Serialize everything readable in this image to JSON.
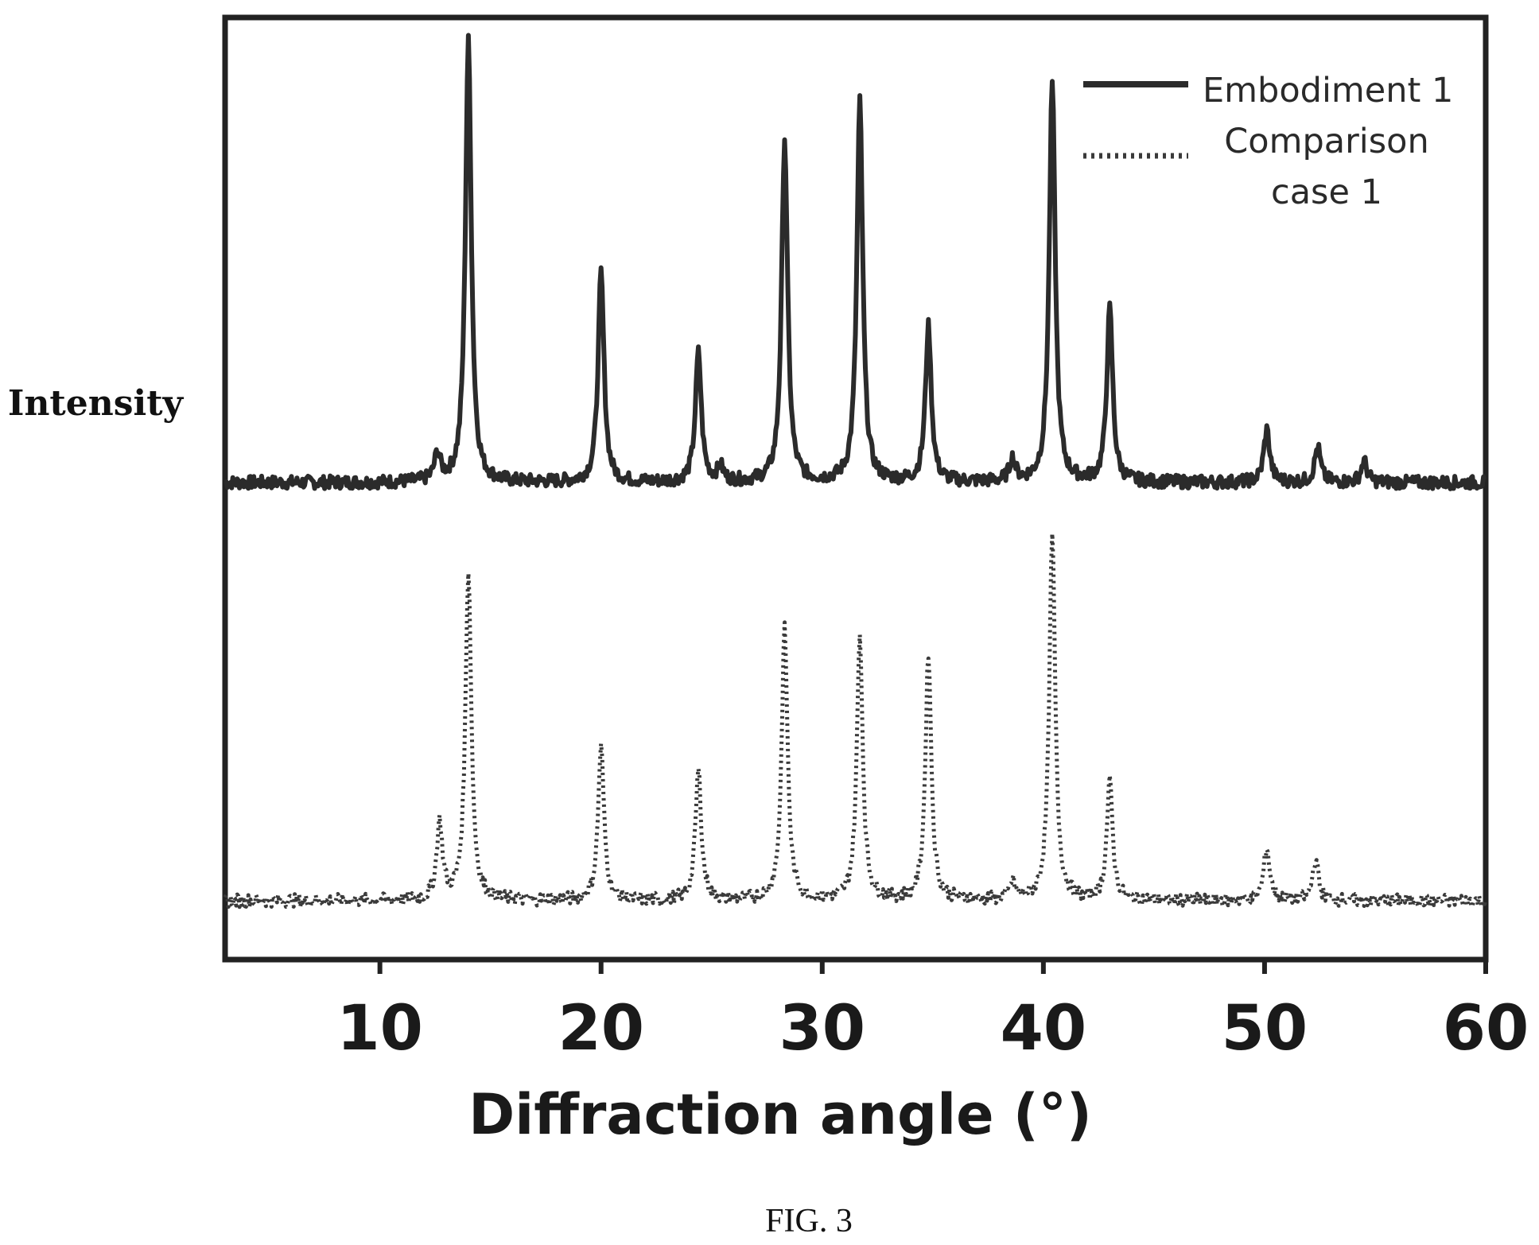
{
  "chart_data": {
    "type": "line",
    "title": "",
    "xlabel": "Diffraction angle (°)",
    "ylabel": "Intensity",
    "xlim": [
      3,
      60
    ],
    "xticks": [
      10,
      20,
      30,
      40,
      50,
      60
    ],
    "y_ticks_shown": false,
    "grid": false,
    "legend_position": "top-right",
    "caption": "FIG. 3",
    "series": [
      {
        "name": "Embodiment 1",
        "style": "solid",
        "color": "#2b2b2b",
        "baseline": 0.5,
        "peaks": [
          {
            "x": 12.6,
            "y": 2.3
          },
          {
            "x": 14.0,
            "y": 37.5
          },
          {
            "x": 20.0,
            "y": 17.8
          },
          {
            "x": 24.4,
            "y": 11.0
          },
          {
            "x": 25.4,
            "y": 1.2
          },
          {
            "x": 28.3,
            "y": 29.2
          },
          {
            "x": 31.7,
            "y": 32.3
          },
          {
            "x": 34.8,
            "y": 13.2
          },
          {
            "x": 38.6,
            "y": 1.9
          },
          {
            "x": 40.4,
            "y": 34.0
          },
          {
            "x": 43.0,
            "y": 14.7
          },
          {
            "x": 50.1,
            "y": 4.5
          },
          {
            "x": 52.4,
            "y": 3.0
          },
          {
            "x": 54.5,
            "y": 1.8
          }
        ]
      },
      {
        "name": "Comparison case 1",
        "legend_lines": [
          "Comparison",
          "case 1"
        ],
        "style": "dotted",
        "color": "#3a3a3a",
        "baseline": -35,
        "peaks": [
          {
            "x": 12.7,
            "y": 6.5
          },
          {
            "x": 14.0,
            "y": 28.0
          },
          {
            "x": 20.0,
            "y": 13.0
          },
          {
            "x": 24.4,
            "y": 11.0
          },
          {
            "x": 28.3,
            "y": 23.0
          },
          {
            "x": 31.7,
            "y": 22.5
          },
          {
            "x": 34.8,
            "y": 21.0
          },
          {
            "x": 38.6,
            "y": 1.5
          },
          {
            "x": 40.4,
            "y": 31.0
          },
          {
            "x": 43.0,
            "y": 10.0
          },
          {
            "x": 50.1,
            "y": 4.5
          },
          {
            "x": 52.3,
            "y": 3.5
          }
        ]
      }
    ]
  }
}
